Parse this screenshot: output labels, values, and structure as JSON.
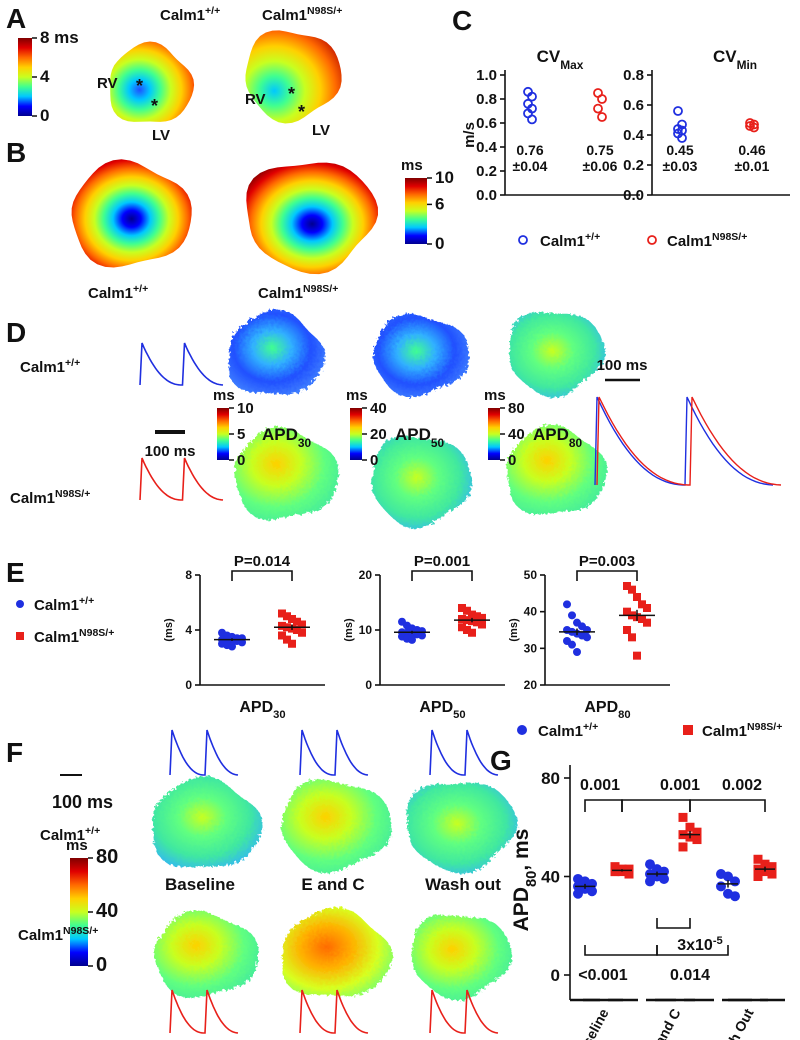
{
  "genotypes": [
    {
      "name": "Calm1",
      "sup": "+/+",
      "color": "#1f2fe0"
    },
    {
      "name": "Calm1",
      "sup": "N98S/+",
      "color": "#e8201a"
    }
  ],
  "panel_a": {
    "label": "A",
    "clim": [
      0,
      8
    ],
    "cticks": [
      {
        "value": 8,
        "label": "8 ms"
      },
      4,
      0
    ],
    "chamber_labels": [
      "RV",
      "LV"
    ],
    "marker": "*"
  },
  "panel_b": {
    "label": "B",
    "cunit": "ms",
    "clim": [
      0,
      10
    ],
    "cticks": [
      10,
      6,
      0
    ]
  },
  "panel_c": {
    "label": "C",
    "y_label": "m/s",
    "plots": [
      {
        "title": "CV",
        "title_sub": "Max",
        "ylim": [
          0,
          1
        ],
        "yticks": [
          {
            "value": 0,
            "label": "0.0"
          },
          {
            "value": 0.2,
            "label": "0.2"
          },
          {
            "value": 0.4,
            "label": "0.4"
          },
          {
            "value": 0.6,
            "label": "0.6"
          },
          {
            "value": 0.8,
            "label": "0.8"
          },
          {
            "value": 1,
            "label": "1.0"
          }
        ],
        "series": [
          {
            "values": [
              0.86,
              0.82,
              0.76,
              0.72,
              0.68,
              0.63
            ],
            "summary": [
              "0.76",
              "±0.04"
            ]
          },
          {
            "values": [
              0.85,
              0.8,
              0.72,
              0.65
            ],
            "summary": [
              "0.75",
              "±0.06"
            ]
          }
        ]
      },
      {
        "title": "CV",
        "title_sub": "Min",
        "ylim": [
          0,
          0.8
        ],
        "yticks": [
          {
            "value": 0,
            "label": "0.0"
          },
          {
            "value": 0.2,
            "label": "0.2"
          },
          {
            "value": 0.4,
            "label": "0.4"
          },
          {
            "value": 0.6,
            "label": "0.6"
          },
          {
            "value": 0.8,
            "label": "0.8"
          }
        ],
        "series": [
          {
            "values": [
              0.56,
              0.47,
              0.44,
              0.43,
              0.41,
              0.38
            ],
            "summary": [
              "0.45",
              "±0.03"
            ]
          },
          {
            "values": [
              0.48,
              0.47,
              0.46,
              0.45
            ],
            "summary": [
              "0.46",
              "±0.01"
            ]
          }
        ]
      }
    ]
  },
  "panel_d": {
    "label": "D",
    "scale_bar": "100 ms",
    "cunit": "ms",
    "maps": [
      {
        "name": "APD",
        "sub": "30",
        "clim": [
          0,
          10
        ],
        "cticks": [
          10,
          5,
          0
        ]
      },
      {
        "name": "APD",
        "sub": "50",
        "clim": [
          0,
          40
        ],
        "cticks": [
          40,
          20,
          0
        ]
      },
      {
        "name": "APD",
        "sub": "80",
        "clim": [
          0,
          80
        ],
        "cticks": [
          80,
          40,
          0
        ]
      }
    ]
  },
  "panel_e": {
    "label": "E",
    "y_label": "(ms)",
    "plots": [
      {
        "name": "APD",
        "sub": "30",
        "ylim": [
          0,
          8
        ],
        "yticks": [
          0,
          4,
          8
        ],
        "p": "P=0.014",
        "series": [
          {
            "values": [
              3.8,
              3.6,
              3.5,
              3.4,
              3.4,
              3.3,
              3.3,
              3.2,
              3.2,
              3.1,
              3.0,
              2.9,
              2.8
            ],
            "mean": 3.3,
            "sem": 0.1
          },
          {
            "values": [
              5.2,
              5.0,
              4.8,
              4.6,
              4.4,
              4.3,
              4.2,
              4.1,
              4.0,
              3.8,
              3.6,
              3.3,
              3.0
            ],
            "mean": 4.2,
            "sem": 0.2
          }
        ]
      },
      {
        "name": "APD",
        "sub": "50",
        "ylim": [
          0,
          20
        ],
        "yticks": [
          0,
          10,
          20
        ],
        "p": "P=0.001",
        "series": [
          {
            "values": [
              11.5,
              10.8,
              10.3,
              10,
              9.8,
              9.6,
              9.5,
              9.4,
              9.2,
              9.0,
              8.8,
              8.4,
              8.2
            ],
            "mean": 9.6,
            "sem": 0.25
          },
          {
            "values": [
              14,
              13.5,
              12.8,
              12.5,
              12.2,
              12,
              11.8,
              11.6,
              11.4,
              11,
              10.5,
              10,
              9.5
            ],
            "mean": 11.8,
            "sem": 0.4
          }
        ]
      },
      {
        "name": "APD",
        "sub": "80",
        "ylim": [
          20,
          50
        ],
        "yticks": [
          20,
          30,
          40,
          50
        ],
        "p": "P=0.003",
        "series": [
          {
            "values": [
              42,
              39,
              37,
              36,
              35,
              35,
              34.5,
              34,
              33.5,
              33,
              32,
              31,
              29
            ],
            "mean": 34.5,
            "sem": 0.9
          },
          {
            "values": [
              47,
              46,
              44,
              42,
              41,
              40,
              39,
              38.5,
              38,
              37,
              35,
              33,
              28
            ],
            "mean": 39,
            "sem": 1.5
          }
        ]
      }
    ]
  },
  "panel_f": {
    "label": "F",
    "scale_bar": "100 ms",
    "cunit": "ms",
    "clim": [
      0,
      80
    ],
    "cticks": [
      80,
      40,
      0
    ],
    "conditions": [
      "Baseline",
      "E and C",
      "Wash out"
    ]
  },
  "panel_g": {
    "label": "G",
    "y_label": [
      "APD",
      "80",
      ", ms"
    ],
    "ylim": [
      0,
      80
    ],
    "yticks": [
      0,
      40,
      80
    ],
    "categories": [
      "Baseline",
      "E and C",
      "Wash Out"
    ],
    "groups": [
      {
        "values": [
          39,
          38,
          37,
          36,
          35,
          34,
          33
        ],
        "mean": 36,
        "sem": 1
      },
      {
        "values": [
          44,
          43,
          43,
          42,
          42,
          41,
          42
        ],
        "mean": 42.5,
        "sem": 0.5
      },
      {
        "values": [
          45,
          43,
          42,
          41,
          40,
          39,
          38
        ],
        "mean": 41,
        "sem": 1
      },
      {
        "values": [
          64,
          60,
          58,
          57,
          56,
          55,
          52
        ],
        "mean": 57,
        "sem": 1.5
      },
      {
        "values": [
          41,
          40,
          38,
          36,
          33,
          32
        ],
        "mean": 37,
        "sem": 1.5
      },
      {
        "values": [
          47,
          45,
          44,
          43,
          42,
          41,
          40
        ],
        "mean": 43,
        "sem": 1
      }
    ],
    "comparisons": [
      {
        "text": "0.001"
      },
      {
        "text": "0.001"
      },
      {
        "text": "0.002"
      },
      {
        "text": "3x10",
        "sup": "-5"
      },
      {
        "text": "<0.001"
      },
      {
        "text": "0.014"
      }
    ]
  }
}
